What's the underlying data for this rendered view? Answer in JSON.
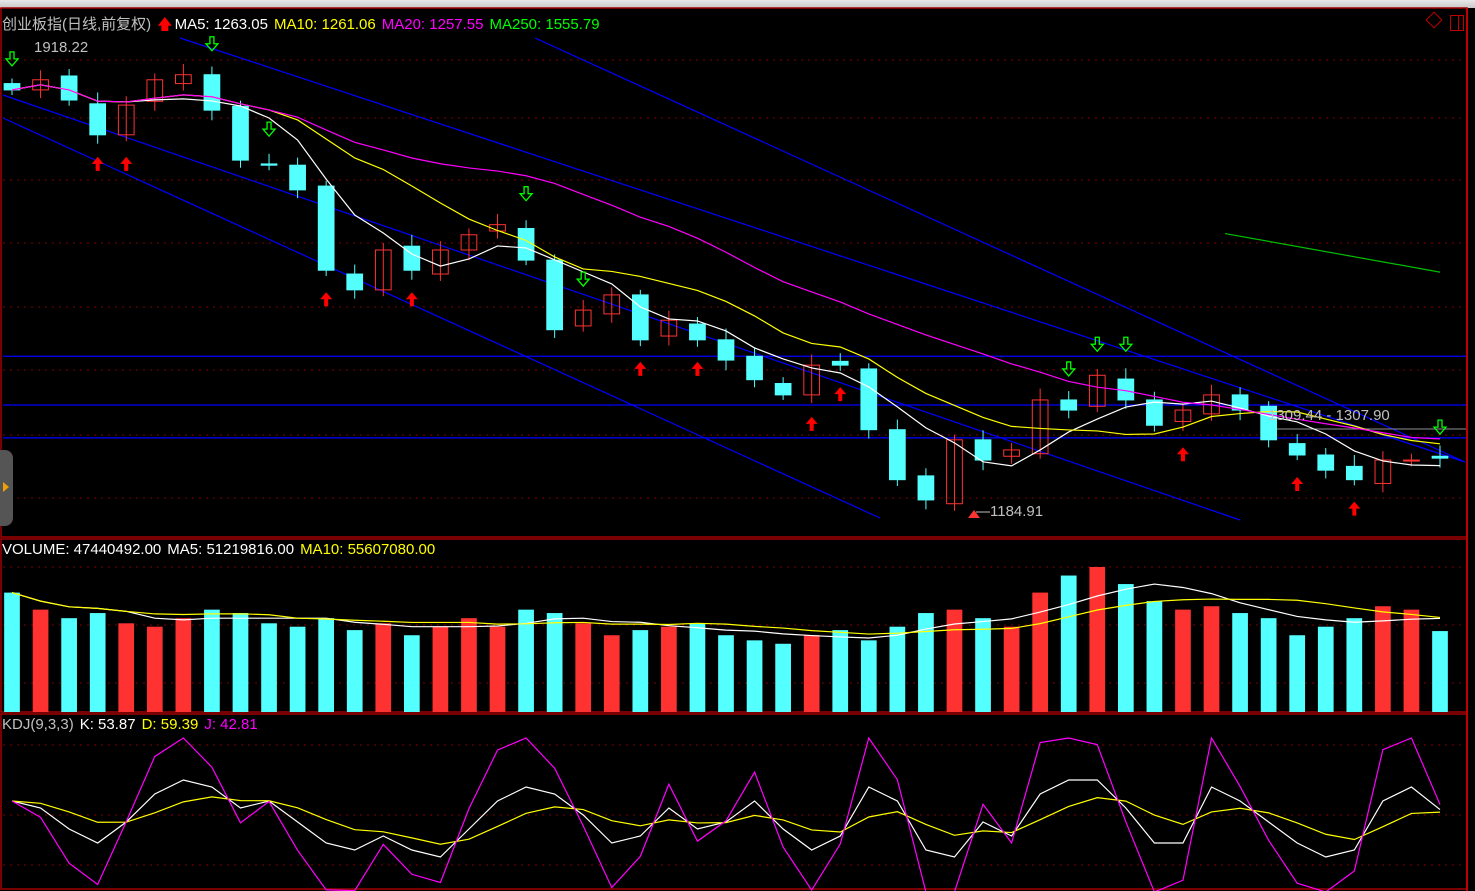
{
  "header": {
    "title": "创业板指(日线,前复权)",
    "ma5": "MA5: 1263.05",
    "ma10": "MA10: 1261.06",
    "ma20": "MA20: 1257.55",
    "ma250": "MA250: 1555.79"
  },
  "volume_header": {
    "volume": "VOLUME: 47440492.00",
    "ma5": "MA5: 51219816.00",
    "ma10": "MA10: 55607080.00"
  },
  "kdj_header": {
    "name": "KDJ(9,3,3)",
    "k": "K: 53.87",
    "d": "D: 59.39",
    "j": "J: 42.81"
  },
  "annotations": {
    "high_label": "1918.22",
    "low_label": "1184.91",
    "range_label": "1309.44 - 1307.90"
  },
  "colors": {
    "up": "#ff3232",
    "down": "#54ffff",
    "ma5": "#ffffff",
    "ma10": "#ffff00",
    "ma20": "#ff00ff",
    "ma250": "#00c000",
    "trendline": "#0000ff",
    "grid": "#800000",
    "buy_signal": "#ff0000",
    "sell_signal": "#00ff00"
  },
  "chart_data": {
    "type": "candlestick",
    "price_range": [
      1184.91,
      1918.22
    ],
    "closes": [
      1852,
      1868,
      1836,
      1781,
      1828,
      1868,
      1876,
      1820,
      1741,
      1733,
      1694,
      1567,
      1536,
      1599,
      1567,
      1599,
      1623,
      1639,
      1583,
      1473,
      1504,
      1528,
      1457,
      1488,
      1457,
      1425,
      1394,
      1370,
      1417,
      1417,
      1315,
      1236,
      1204,
      1299,
      1267,
      1283,
      1362,
      1346,
      1401,
      1362,
      1322,
      1346,
      1370,
      1346,
      1299,
      1275,
      1251,
      1236,
      1267,
      1267,
      1270
    ],
    "volume_millions": [
      70,
      60,
      55,
      58,
      52,
      50,
      55,
      60,
      58,
      52,
      50,
      55,
      48,
      52,
      45,
      50,
      55,
      50,
      60,
      58,
      52,
      45,
      48,
      50,
      52,
      45,
      42,
      40,
      45,
      48,
      42,
      50,
      58,
      60,
      55,
      50,
      70,
      80,
      85,
      75,
      65,
      60,
      62,
      58,
      55,
      45,
      50,
      55,
      62,
      60,
      47.44
    ],
    "kdj_k": [
      60,
      55,
      40,
      30,
      45,
      65,
      75,
      70,
      55,
      60,
      45,
      30,
      25,
      35,
      25,
      20,
      40,
      60,
      70,
      65,
      50,
      30,
      35,
      55,
      40,
      45,
      60,
      40,
      25,
      35,
      70,
      60,
      25,
      20,
      45,
      35,
      65,
      75,
      75,
      55,
      30,
      30,
      70,
      60,
      45,
      30,
      20,
      25,
      60,
      70,
      53.87
    ],
    "horizontal_lines": [
      1431,
      1354,
      1302
    ],
    "ma250_segment": [
      1625,
      1564
    ],
    "buy_signals": [
      3,
      4,
      11,
      14,
      22,
      24,
      28,
      29,
      41,
      45,
      47
    ],
    "sell_signals": [
      0,
      7,
      9,
      18,
      20,
      37,
      38,
      39,
      50
    ]
  }
}
